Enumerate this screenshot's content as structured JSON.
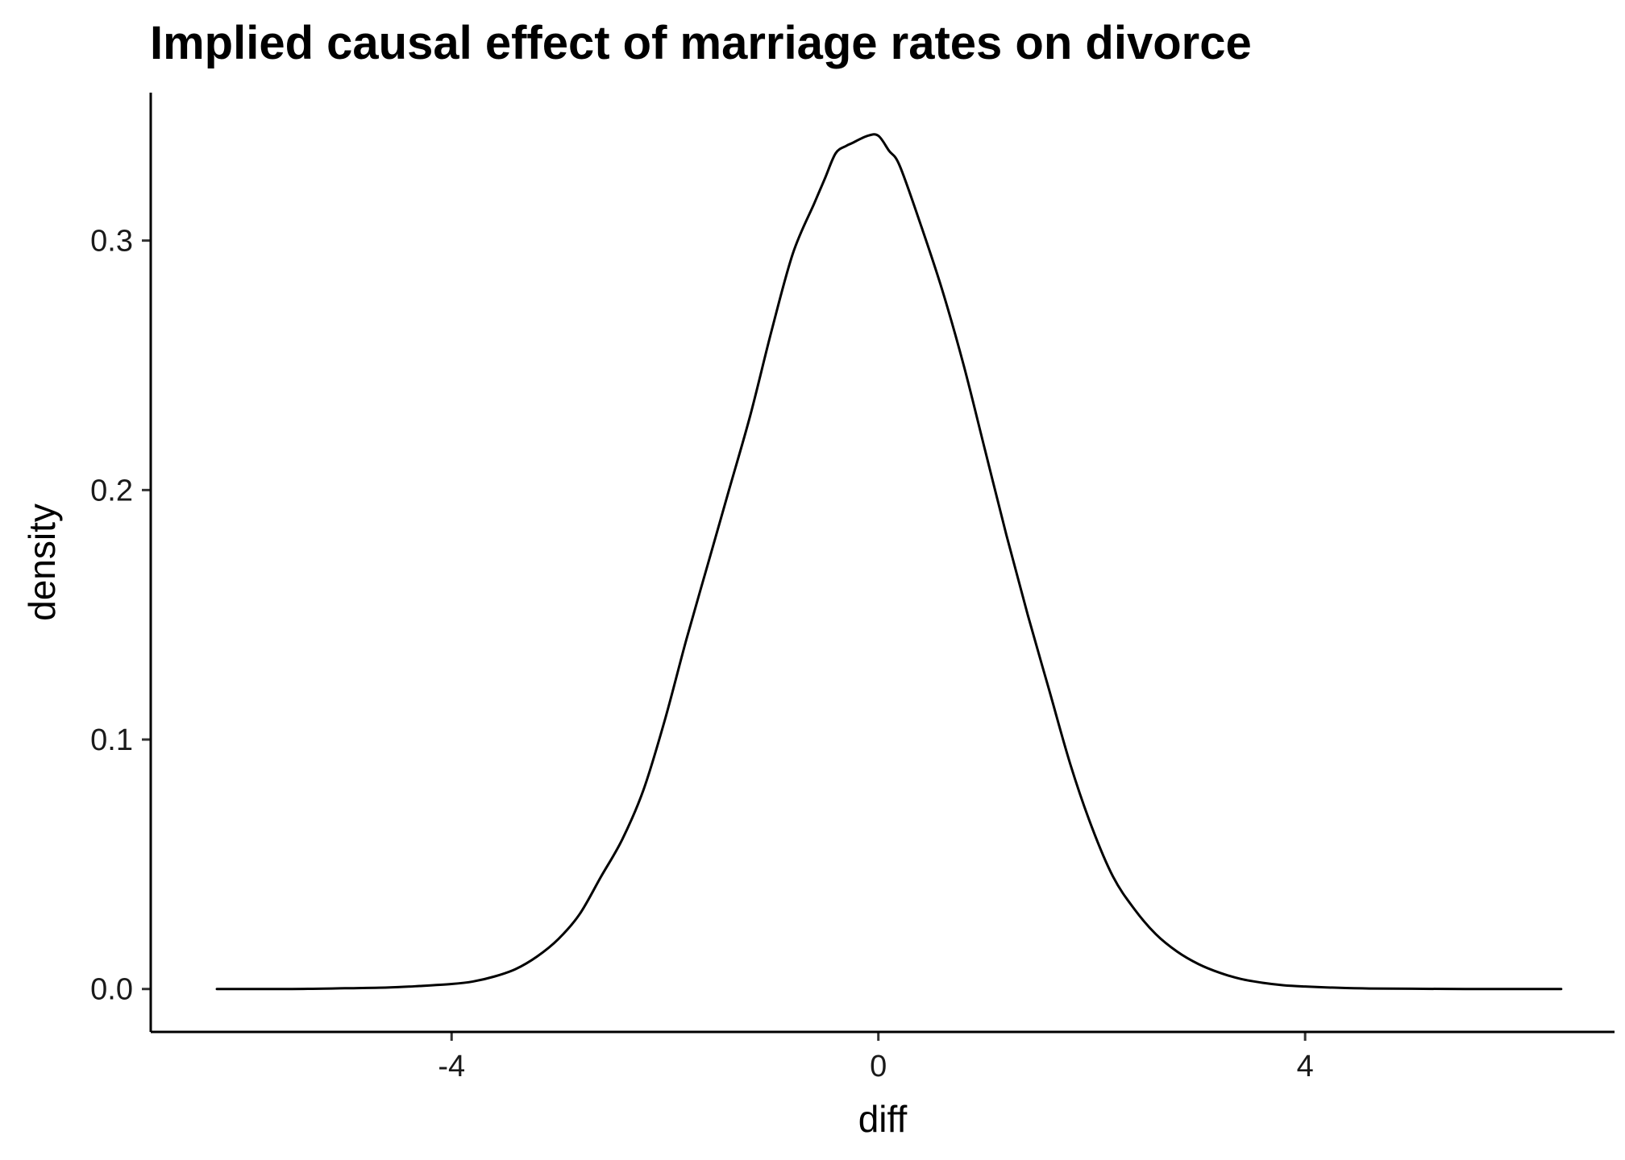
{
  "chart_data": {
    "type": "line",
    "title": "Implied causal effect of marriage rates on divorce",
    "xlabel": "diff",
    "ylabel": "density",
    "xlim": [
      -6.82,
      6.9
    ],
    "ylim": [
      -0.0172,
      0.3593
    ],
    "x_ticks": [
      -4,
      0,
      4
    ],
    "x_tick_labels": [
      "-4",
      "0",
      "4"
    ],
    "y_ticks": [
      0.0,
      0.1,
      0.2,
      0.3
    ],
    "y_tick_labels": [
      "0.0",
      "0.1",
      "0.2",
      "0.3"
    ],
    "grid": false,
    "legend": "none",
    "line_color": "#000000",
    "series": [
      {
        "x": [
          -6.2,
          -5.5,
          -5.0,
          -4.6,
          -4.3,
          -4.0,
          -3.8,
          -3.6,
          -3.4,
          -3.2,
          -3.0,
          -2.8,
          -2.6,
          -2.4,
          -2.2,
          -2.0,
          -1.8,
          -1.6,
          -1.4,
          -1.2,
          -1.0,
          -0.8,
          -0.6,
          -0.5,
          -0.4,
          -0.3,
          -0.25,
          -0.1,
          0.0,
          0.1,
          0.2,
          0.4,
          0.6,
          0.8,
          1.0,
          1.2,
          1.4,
          1.6,
          1.8,
          2.0,
          2.2,
          2.4,
          2.6,
          2.8,
          3.0,
          3.2,
          3.4,
          3.6,
          3.8,
          4.0,
          4.3,
          4.6,
          5.0,
          5.5,
          6.0,
          6.4
        ],
        "y": [
          0.0,
          0.0,
          0.0003,
          0.0006,
          0.0012,
          0.002,
          0.003,
          0.005,
          0.008,
          0.013,
          0.02,
          0.03,
          0.045,
          0.06,
          0.08,
          0.108,
          0.14,
          0.17,
          0.2,
          0.23,
          0.264,
          0.295,
          0.315,
          0.325,
          0.335,
          0.338,
          0.339,
          0.342,
          0.342,
          0.336,
          0.33,
          0.306,
          0.28,
          0.25,
          0.216,
          0.182,
          0.15,
          0.12,
          0.09,
          0.065,
          0.045,
          0.032,
          0.022,
          0.015,
          0.01,
          0.0065,
          0.004,
          0.0025,
          0.0015,
          0.001,
          0.0005,
          0.0002,
          0.0001,
          0.0,
          0.0,
          0.0
        ]
      }
    ]
  }
}
